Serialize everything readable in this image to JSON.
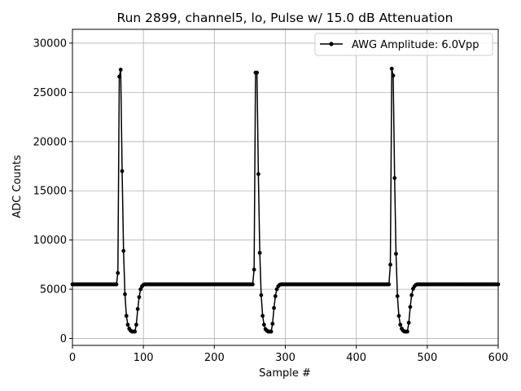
{
  "chart_data": {
    "type": "line",
    "title": "Run 2899, channel5, lo, Pulse w/ 15.0 dB Attenuation",
    "xlabel": "Sample #",
    "ylabel": "ADC Counts",
    "xlim": [
      0,
      600
    ],
    "ylim": [
      -700,
      31400
    ],
    "x_ticks": [
      0,
      100,
      200,
      300,
      400,
      500,
      600
    ],
    "y_ticks": [
      0,
      5000,
      10000,
      15000,
      20000,
      25000,
      30000
    ],
    "grid": true,
    "legend_position": "top-right",
    "baseline": 5500,
    "sample_step": 2,
    "pulses": [
      {
        "start": 64,
        "values": [
          6650,
          26600,
          27300,
          17000,
          8900,
          4500,
          2300,
          1400,
          1000,
          800,
          700,
          700,
          700,
          1400,
          3000,
          4200,
          5000,
          5300,
          5450,
          5500
        ]
      },
      {
        "start": 256,
        "values": [
          7000,
          27000,
          27000,
          16700,
          8700,
          4400,
          2300,
          1400,
          950,
          800,
          700,
          700,
          700,
          1500,
          3100,
          4300,
          5000,
          5300,
          5450,
          5500
        ]
      },
      {
        "start": 448,
        "values": [
          7500,
          27400,
          26700,
          16300,
          8600,
          4300,
          2300,
          1400,
          1000,
          800,
          700,
          700,
          700,
          1600,
          3200,
          4400,
          5050,
          5300,
          5450,
          5500
        ]
      }
    ],
    "series": [
      {
        "name": "AWG Amplitude: 6.0Vpp",
        "color": "#000000",
        "marker": "circle"
      }
    ]
  }
}
